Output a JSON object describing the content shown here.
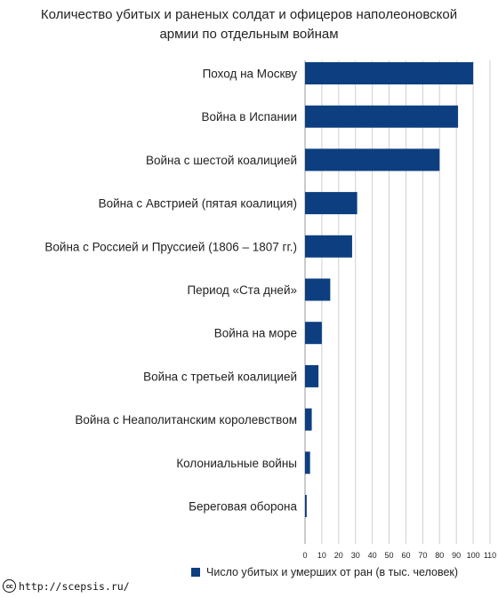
{
  "title_lines": [
    "Количество убитых и раненых солдат и офицеров наполеоновской",
    "армии по отдельным войнам"
  ],
  "colors": {
    "bar": "#0d3f80",
    "grid": "#cfcfcf",
    "text": "#222222"
  },
  "legend": {
    "label": "Число убитых и умерших от ран (в тыс. человек)"
  },
  "footer": {
    "url": "http://scepsis.ru/",
    "icon": "cc-icon"
  },
  "chart_data": {
    "type": "bar",
    "orientation": "horizontal",
    "categories": [
      "Поход на Москву",
      "Война в Испании",
      "Война с шестой коалицией",
      "Война с Австрией (пятая коалиция)",
      "Война с Россией и Пруссией (1806 – 1807 гг.)",
      "Период «Ста дней»",
      "Война на море",
      "Война с третьей коалицией",
      "Война с Неаполитанским королевством",
      "Колониальные войны",
      "Береговая оборона"
    ],
    "series": [
      {
        "name": "Число убитых и умерших от ран (в тыс. человек)",
        "values": [
          100,
          91,
          80,
          31,
          28,
          15,
          10,
          8,
          4,
          3,
          1
        ]
      }
    ],
    "xlim": [
      0,
      110
    ],
    "xticks": [
      "0",
      "10",
      "20",
      "30",
      "40",
      "50",
      "60",
      "70",
      "80",
      "90",
      "100",
      "110"
    ],
    "grid": true,
    "legend_position": "bottom"
  }
}
